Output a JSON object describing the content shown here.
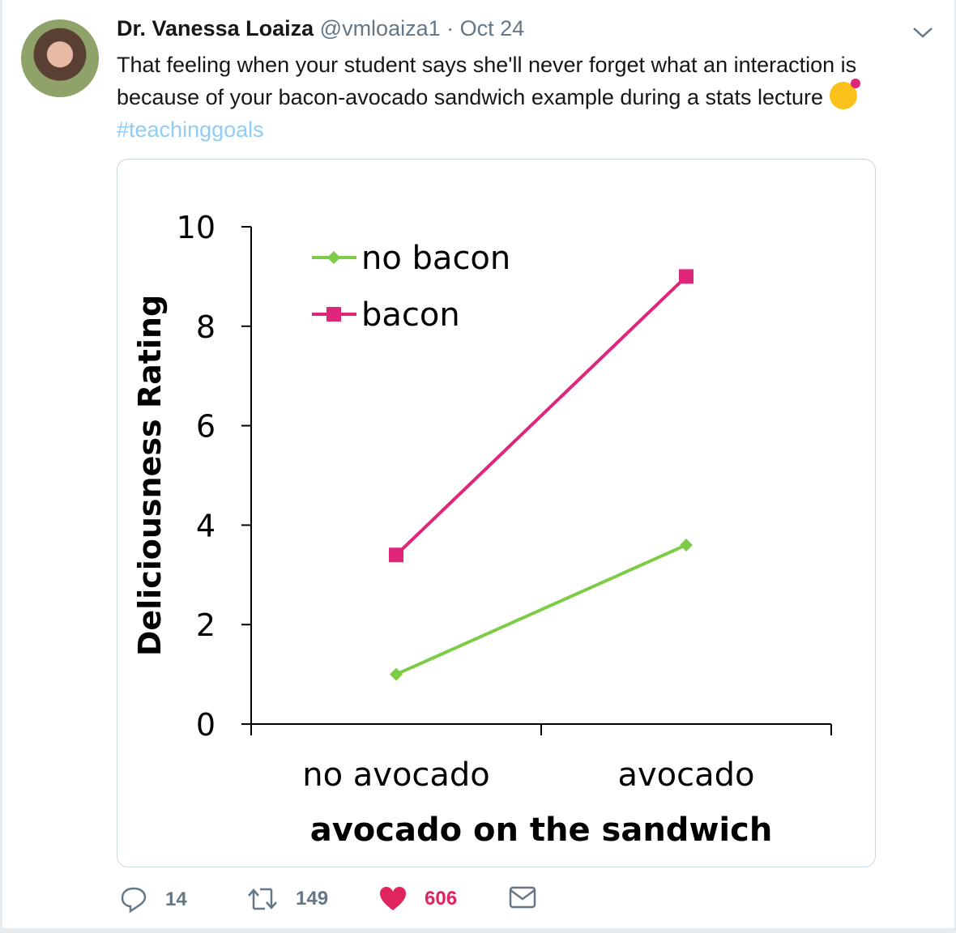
{
  "tweet": {
    "author_name": "Dr. Vanessa Loaiza",
    "handle": "@vmloaiza1",
    "separator": "·",
    "date": "Oct 24",
    "text": "That feeling when your student says she'll never forget what an interaction is because of your bacon-avocado sandwich example during a stats lecture",
    "emoji": "smiling-face-with-hearts",
    "hashtag": "#teachinggoals"
  },
  "actions": {
    "replies": "14",
    "retweets": "149",
    "likes": "606",
    "like_color": "#e0245e"
  },
  "chart_data": {
    "type": "line",
    "categories": [
      "no avocado",
      "avocado"
    ],
    "xlabel": "avocado on the sandwich",
    "ylabel": "Deliciousness Rating",
    "ylim": [
      0,
      10
    ],
    "yticks": [
      "0",
      "2",
      "4",
      "6",
      "8",
      "10"
    ],
    "legend": "top-left",
    "series": [
      {
        "name": "no bacon",
        "values": [
          1.0,
          3.6
        ],
        "color": "#7ccc45",
        "marker": "diamond"
      },
      {
        "name": "bacon",
        "values": [
          3.4,
          9.0
        ],
        "color": "#e0267a",
        "marker": "square"
      }
    ]
  }
}
